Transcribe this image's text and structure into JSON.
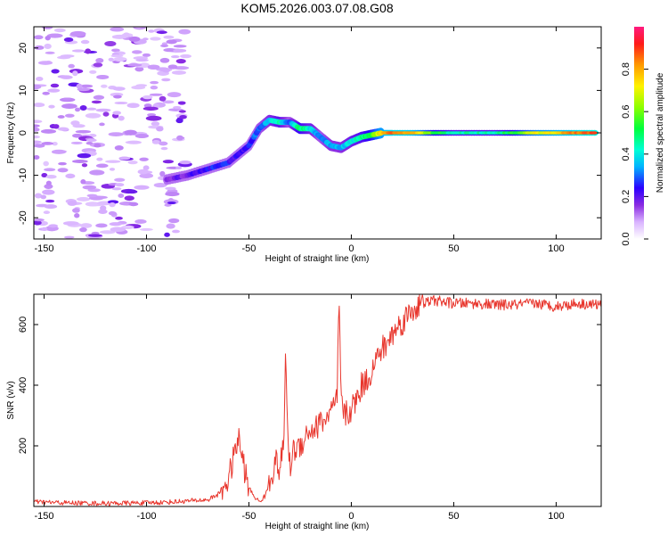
{
  "title": "KOM5.2026.003.07.08.G08",
  "chart_data": [
    {
      "type": "heatmap",
      "name": "spectrogram",
      "xlabel": "Height of straight line (km)",
      "ylabel": "Frequency (Hz)",
      "xlim": [
        -155,
        122
      ],
      "ylim": [
        -25,
        25
      ],
      "xticks": [
        -150,
        -100,
        -50,
        0,
        50,
        100
      ],
      "yticks": [
        -20,
        -10,
        0,
        10,
        20
      ],
      "colorbar": {
        "label": "Normalized spectral amplitude",
        "range": [
          0.0,
          1.0
        ],
        "ticks": [
          0.0,
          0.2,
          0.4,
          0.6,
          0.8
        ]
      },
      "ridge": {
        "x": [
          -90,
          -80,
          -70,
          -60,
          -55,
          -50,
          -45,
          -40,
          -35,
          -30,
          -25,
          -20,
          -15,
          -10,
          -5,
          0,
          5,
          10,
          15,
          20,
          30,
          40,
          50,
          60,
          70,
          80,
          90,
          100,
          110,
          120
        ],
        "y": [
          -11,
          -10,
          -8.5,
          -7,
          -5,
          -3,
          1,
          3,
          2.5,
          2.5,
          1,
          1,
          -1,
          -3,
          -3.5,
          -2,
          -1,
          -0.5,
          0,
          0,
          0,
          0,
          0,
          0,
          0,
          0,
          0,
          0,
          0,
          0
        ],
        "amplitude": [
          0.15,
          0.2,
          0.25,
          0.25,
          0.2,
          0.25,
          0.3,
          0.35,
          0.45,
          0.3,
          0.5,
          0.4,
          0.3,
          0.35,
          0.35,
          0.4,
          0.45,
          0.55,
          0.75,
          0.85,
          0.8,
          0.55,
          0.45,
          0.45,
          0.45,
          0.55,
          0.7,
          0.75,
          0.85,
          0.9
        ]
      }
    },
    {
      "type": "line",
      "name": "snr",
      "xlabel": "Height of straight line (km)",
      "ylabel": "SNR (v/v)",
      "xlim": [
        -155,
        122
      ],
      "ylim": [
        0,
        700
      ],
      "xticks": [
        -150,
        -100,
        -50,
        0,
        50,
        100
      ],
      "yticks": [
        200,
        400,
        600
      ],
      "color": "#e8362d",
      "series": [
        {
          "name": "SNR",
          "x": [
            -155,
            -140,
            -120,
            -100,
            -90,
            -80,
            -70,
            -65,
            -60,
            -57,
            -55,
            -53,
            -50,
            -47,
            -45,
            -42,
            -40,
            -37,
            -35,
            -33,
            -32,
            -31,
            -30,
            -28,
            -25,
            -22,
            -20,
            -17,
            -15,
            -12,
            -10,
            -8,
            -7,
            -6,
            -5,
            -3,
            0,
            3,
            5,
            8,
            10,
            12,
            15,
            18,
            20,
            25,
            30,
            35,
            40,
            50,
            60,
            70,
            80,
            90,
            100,
            110,
            122
          ],
          "y": [
            15,
            12,
            10,
            12,
            14,
            18,
            22,
            40,
            90,
            170,
            230,
            150,
            60,
            30,
            15,
            35,
            80,
            150,
            120,
            200,
            520,
            230,
            130,
            190,
            200,
            240,
            250,
            260,
            280,
            290,
            310,
            330,
            350,
            690,
            340,
            300,
            320,
            360,
            400,
            420,
            450,
            480,
            520,
            540,
            570,
            610,
            650,
            670,
            680,
            670,
            670,
            665,
            665,
            670,
            660,
            670,
            665
          ]
        }
      ]
    }
  ]
}
